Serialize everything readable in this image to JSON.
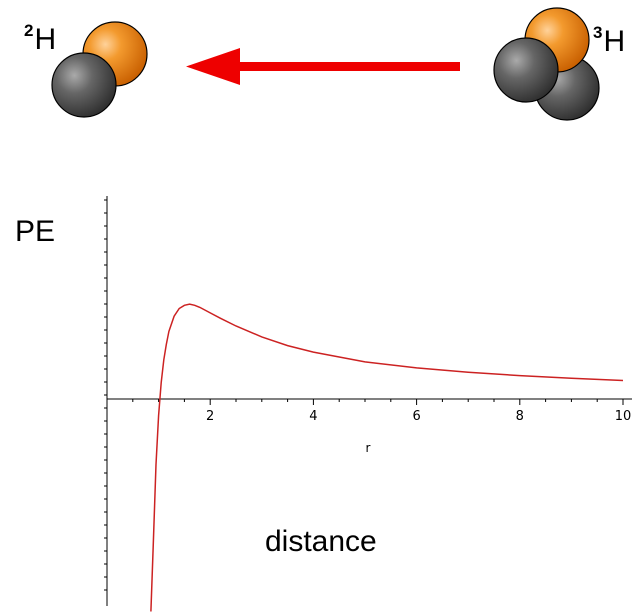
{
  "diagram": {
    "deuterium": {
      "mass_number": "2",
      "symbol": "H"
    },
    "tritium": {
      "mass_number": "3",
      "symbol": "H"
    },
    "colors": {
      "proton": "#ee7f16",
      "neutron": "#555555",
      "arrow": "#ee0000",
      "curve": "#cc2222"
    },
    "arrow_direction": "right-to-left"
  },
  "chart_data": {
    "type": "line",
    "ylabel": "PE",
    "xlabel": "r",
    "annotation": "distance",
    "x_ticks": [
      "2",
      "4",
      "6",
      "8",
      "10"
    ],
    "xlim": [
      0,
      10
    ],
    "series": [
      {
        "x": [
          0.85,
          0.9,
          0.95,
          1.0,
          1.05,
          1.1,
          1.15,
          1.2,
          1.3,
          1.4,
          1.5,
          1.6,
          1.7,
          1.8,
          2.0,
          2.2,
          2.5,
          3.0,
          3.5,
          4.0,
          5.0,
          6.0,
          7.0,
          8.0,
          9.0,
          10.0
        ],
        "y": [
          -19.5,
          -13,
          -6,
          -1.5,
          1.5,
          3.6,
          5.0,
          6.2,
          7.6,
          8.3,
          8.6,
          8.7,
          8.6,
          8.4,
          7.9,
          7.4,
          6.7,
          5.7,
          4.9,
          4.3,
          3.4,
          2.85,
          2.45,
          2.15,
          1.9,
          1.7
        ]
      }
    ]
  }
}
